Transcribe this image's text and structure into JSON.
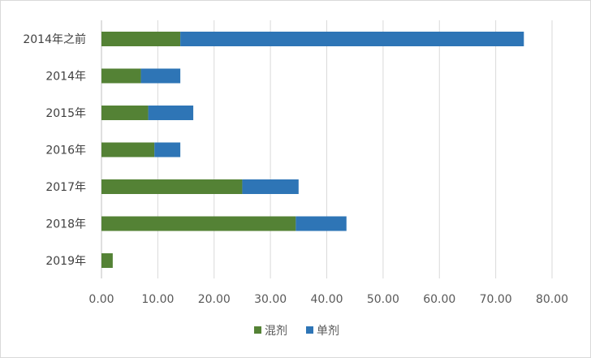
{
  "chart_data": {
    "type": "bar",
    "orientation": "horizontal",
    "stacked": true,
    "categories": [
      "2014年之前",
      "2014年",
      "2015年",
      "2016年",
      "2017年",
      "2018年",
      "2019年"
    ],
    "series": [
      {
        "name": "混剂",
        "color": "#548235",
        "values": [
          14,
          7,
          8.3,
          9.4,
          25,
          34.5,
          2
        ]
      },
      {
        "name": "单剂",
        "color": "#2e75b6",
        "values": [
          61,
          7,
          8,
          4.6,
          10,
          9,
          0
        ]
      }
    ],
    "x_ticks": [
      "0.00",
      "10.00",
      "20.00",
      "30.00",
      "40.00",
      "50.00",
      "60.00",
      "70.00",
      "80.00"
    ],
    "xlim": [
      0,
      80
    ],
    "grid": "vertical",
    "legend_position": "bottom"
  }
}
